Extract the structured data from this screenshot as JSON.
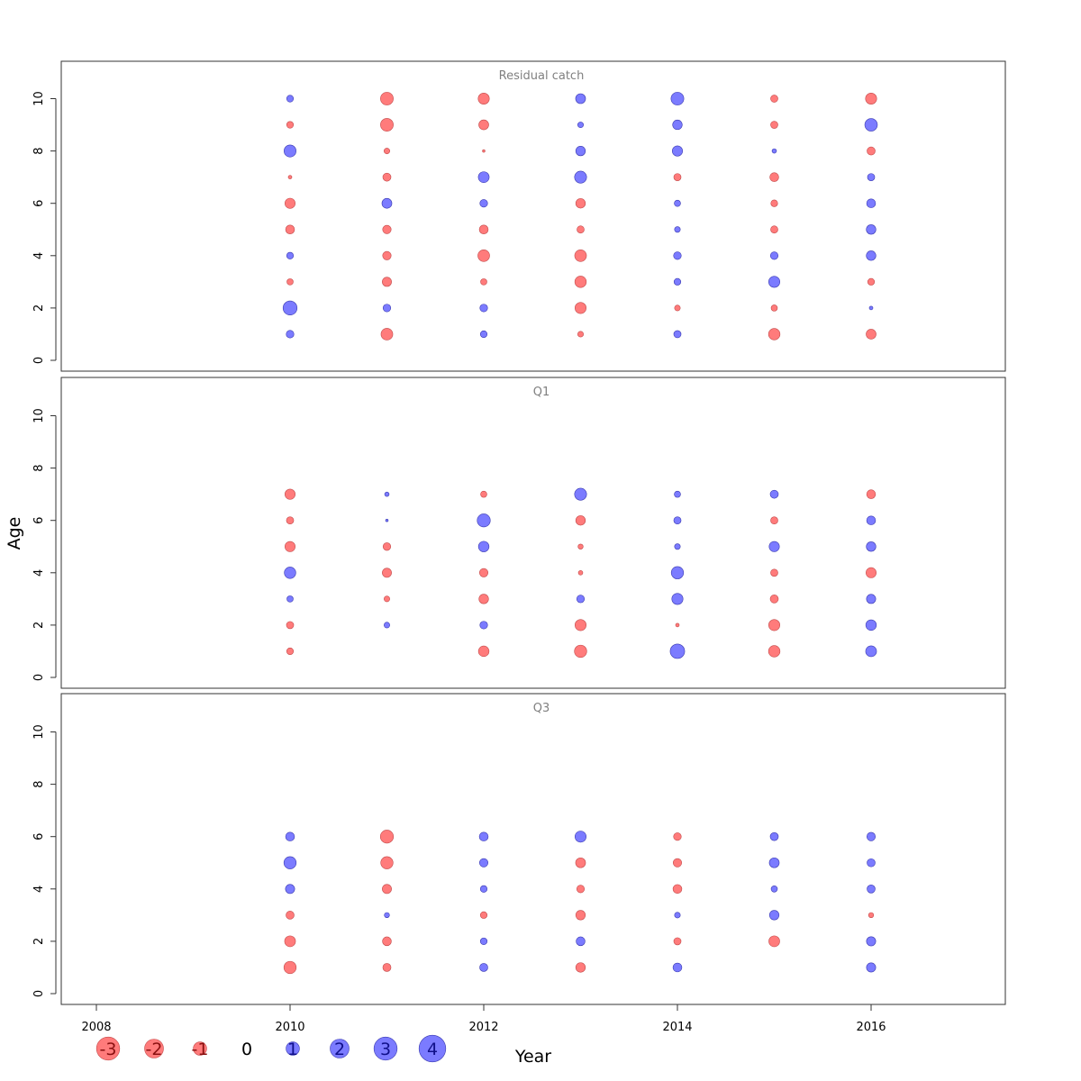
{
  "chart_data": {
    "type": "scatter",
    "subtype": "bubble",
    "xlabel": "Year",
    "ylabel": "Age",
    "xlim": [
      2007.5,
      2017.35
    ],
    "ylim": [
      -0.4,
      11.35
    ],
    "x_ticks": [
      2008,
      2010,
      2012,
      2014,
      2016
    ],
    "y_ticks": [
      0,
      2,
      4,
      6,
      8,
      10
    ],
    "grid": false,
    "legend_placement": "bottom-left",
    "colors": {
      "positive": "#7b7bff",
      "negative": "#ff7b7b",
      "positive_stroke": "#3a3ab0",
      "negative_stroke": "#c24a4a"
    },
    "legend": [
      {
        "label": "-3",
        "value": -3
      },
      {
        "label": "-2",
        "value": -2
      },
      {
        "label": "-1",
        "value": -1
      },
      {
        "label": "0",
        "value": 0
      },
      {
        "label": "1",
        "value": 1
      },
      {
        "label": "2",
        "value": 2
      },
      {
        "label": "3",
        "value": 3
      },
      {
        "label": "4",
        "value": 4
      }
    ],
    "panels": [
      {
        "title": "Residual catch",
        "years": [
          2010,
          2011,
          2012,
          2013,
          2014,
          2015,
          2016
        ],
        "ages": [
          1,
          2,
          3,
          4,
          5,
          6,
          7,
          8,
          9,
          10
        ],
        "residuals": [
          [
            0.9,
            -2.1,
            0.7,
            -0.5,
            0.8,
            -2.0,
            -1.5
          ],
          [
            3.0,
            0.9,
            0.9,
            -1.9,
            -0.5,
            -0.6,
            0.2
          ],
          [
            -0.6,
            -1.3,
            -0.6,
            -2.0,
            0.7,
            1.9,
            -0.7
          ],
          [
            0.7,
            -1.1,
            -2.1,
            -2.1,
            0.9,
            0.9,
            1.4
          ],
          [
            -1.2,
            -1.1,
            -1.2,
            -0.8,
            0.5,
            -0.8,
            1.4
          ],
          [
            -1.6,
            1.5,
            0.9,
            -1.4,
            0.6,
            -0.7,
            1.2
          ],
          [
            -0.2,
            -1.0,
            1.8,
            2.2,
            -0.8,
            -1.2,
            0.8
          ],
          [
            2.2,
            -0.5,
            -0.1,
            1.4,
            1.6,
            0.3,
            -1.0
          ],
          [
            -0.7,
            -2.5,
            -1.5,
            0.5,
            1.4,
            -0.8,
            2.4
          ],
          [
            0.7,
            -2.5,
            -1.9,
            1.5,
            2.5,
            -0.8,
            -1.9
          ]
        ]
      },
      {
        "title": "Q1",
        "years": [
          2010,
          2011,
          2012,
          2013,
          2014,
          2015,
          2016
        ],
        "ages": [
          1,
          2,
          3,
          4,
          5,
          6,
          7
        ],
        "residuals": [
          [
            -0.7,
            0.0,
            -1.7,
            -2.3,
            3.2,
            -2.0,
            1.8
          ],
          [
            -0.8,
            0.5,
            0.9,
            -1.9,
            -0.2,
            -1.9,
            1.7
          ],
          [
            0.6,
            -0.5,
            -1.4,
            0.9,
            1.9,
            -1.0,
            1.3
          ],
          [
            2.0,
            -1.3,
            -1.1,
            -0.3,
            2.3,
            -0.8,
            -1.6
          ],
          [
            -1.6,
            -0.9,
            1.7,
            -0.4,
            0.5,
            1.6,
            1.4
          ],
          [
            -0.8,
            0.1,
            2.6,
            -1.4,
            0.8,
            -0.8,
            1.2
          ],
          [
            -1.6,
            0.3,
            -0.6,
            2.2,
            0.6,
            1.0,
            -1.2
          ]
        ]
      },
      {
        "title": "Q3",
        "years": [
          2010,
          2011,
          2012,
          2013,
          2014,
          2015,
          2016
        ],
        "ages": [
          1,
          2,
          3,
          4,
          5,
          6
        ],
        "residuals": [
          [
            -2.3,
            -1.0,
            1.0,
            -1.4,
            1.2,
            0.0,
            1.3
          ],
          [
            -1.8,
            -1.2,
            0.7,
            1.2,
            -0.8,
            -1.8,
            1.3
          ],
          [
            -1.0,
            0.4,
            -0.7,
            -1.4,
            0.5,
            1.4,
            -0.4
          ],
          [
            1.3,
            -1.3,
            0.7,
            -0.9,
            -1.2,
            0.6,
            1.0
          ],
          [
            2.3,
            -2.3,
            1.1,
            -1.5,
            -1.1,
            1.5,
            1.0
          ],
          [
            1.2,
            -2.6,
            1.2,
            1.9,
            -0.9,
            1.0,
            1.1
          ]
        ]
      }
    ]
  }
}
